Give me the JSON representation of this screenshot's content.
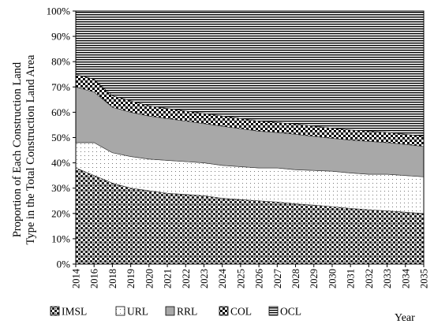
{
  "chart_data": {
    "type": "area",
    "stacked": true,
    "percent": true,
    "ylabel_lines": [
      "Proportion of Each Construction Land",
      "Type  in the Total Construction Land Area"
    ],
    "xlabel": "Year",
    "ylim": [
      0,
      100
    ],
    "yticks": [
      "0%",
      "10%",
      "20%",
      "30%",
      "40%",
      "50%",
      "60%",
      "70%",
      "80%",
      "90%",
      "100%"
    ],
    "x": [
      "2014",
      "2016",
      "2018",
      "2019",
      "2020",
      "2021",
      "2022",
      "2023",
      "2024",
      "2025",
      "2026",
      "2027",
      "2028",
      "2029",
      "2030",
      "2031",
      "2032",
      "2033",
      "2034",
      "2035"
    ],
    "series": [
      {
        "name": "IMSL",
        "pattern": "checker",
        "values": [
          38,
          35,
          32,
          30,
          29,
          28,
          27.5,
          27,
          26,
          25.5,
          25,
          24.5,
          23.8,
          23.3,
          22.7,
          22,
          21.5,
          21,
          20.5,
          20
        ]
      },
      {
        "name": "URL",
        "pattern": "dots",
        "values": [
          10,
          13,
          12,
          12.5,
          12.5,
          13,
          13,
          13,
          13,
          13,
          13,
          13.5,
          13.5,
          13.7,
          14,
          14,
          14,
          14.5,
          14.5,
          14.5
        ]
      },
      {
        "name": "RRL",
        "pattern": "gray",
        "values": [
          22,
          20,
          18,
          17.5,
          17,
          16.5,
          16,
          15.5,
          15.5,
          15,
          14.5,
          14,
          14,
          13.5,
          13,
          13,
          13,
          12.5,
          12.3,
          12
        ]
      },
      {
        "name": "COL",
        "pattern": "diamond",
        "values": [
          5,
          5,
          4.5,
          4.5,
          4,
          4,
          4,
          4,
          4,
          4,
          4,
          4,
          4,
          4,
          4,
          4,
          4,
          4,
          4,
          4
        ]
      },
      {
        "name": "OCL",
        "pattern": "hlines",
        "values": [
          25,
          27,
          33.5,
          35.5,
          37.5,
          38.5,
          39.5,
          40.5,
          41.5,
          42.5,
          43.5,
          44,
          44.7,
          45.5,
          46.3,
          47,
          47.5,
          48,
          48.7,
          49.5
        ]
      }
    ],
    "legend": [
      "IMSL",
      "URL",
      "RRL",
      "COL",
      "OCL"
    ],
    "legend_position": "bottom-left"
  }
}
